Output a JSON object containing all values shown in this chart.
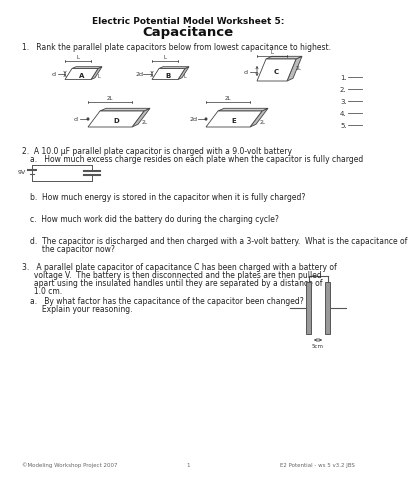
{
  "title_line1": "Electric Potential Model Worksheet 5:",
  "title_line2": "Capacitance",
  "bg_color": "#ffffff",
  "q1_text": "1.   Rank the parallel plate capacitors below from lowest capacitance to highest.",
  "q2_line1": "2.  A 10.0 μF parallel plate capacitor is charged with a 9.0-volt battery",
  "q2a_text": "a.   How much excess charge resides on each plate when the capacitor is fully charged",
  "q2b_text": "b.  How much energy is stored in the capacitor when it is fully charged?",
  "q2c_text": "c.  How much work did the battery do during the charging cycle?",
  "q2d_line1": "d.  The capacitor is discharged and then charged with a 3-volt battery.  What is the capacitance of",
  "q2d_line2": "     the capacitor now?",
  "q3_line1": "3.   A parallel plate capacitor of capacitance C has been charged with a battery of",
  "q3_line2": "     voltage V.  The battery is then disconnected and the plates are then pulled",
  "q3_line3": "     apart using the insulated handles until they are separated by a distance of",
  "q3_line4": "     1.0 cm.",
  "q3a_line1": "a.   By what factor has the capacitance of the capacitor been changed?",
  "q3a_line2": "     Explain your reasoning.",
  "footer_left": "©Modeling Workshop Project 2007",
  "footer_center": "1",
  "footer_right": "E2 Potential - ws 5 v3.2 JBS"
}
